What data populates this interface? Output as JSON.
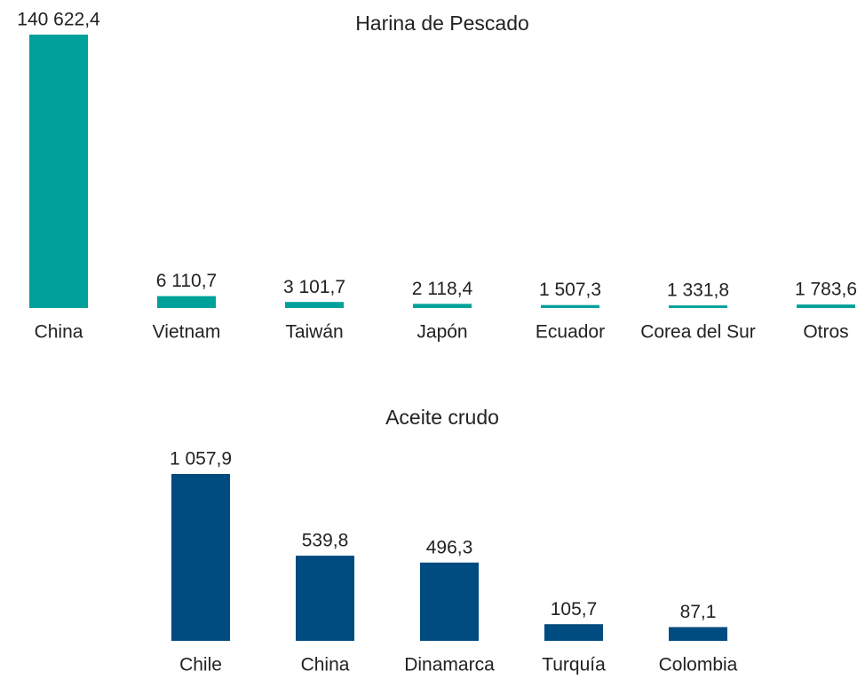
{
  "chart_data": [
    {
      "type": "bar",
      "title": "Harina de Pescado",
      "categories": [
        "China",
        "Vietnam",
        "Taiwán",
        "Japón",
        "Ecuador",
        "Corea del Sur",
        "Otros"
      ],
      "values": [
        140622.4,
        6110.7,
        3101.7,
        2118.4,
        1507.3,
        1331.8,
        1783.6
      ],
      "value_labels": [
        "140 622,4",
        "6 110,7",
        "3 101,7",
        "2 118,4",
        "1 507,3",
        "1 331,8",
        "1 783,6"
      ],
      "color": "#00a19a"
    },
    {
      "type": "bar",
      "title": "Aceite crudo",
      "categories": [
        "Chile",
        "China",
        "Dinamarca",
        "Turquía",
        "Colombia"
      ],
      "values": [
        1057.9,
        539.8,
        496.3,
        105.7,
        87.1
      ],
      "value_labels": [
        "1 057,9",
        "539,8",
        "496,3",
        "105,7",
        "87,1"
      ],
      "color": "#004b80"
    }
  ]
}
